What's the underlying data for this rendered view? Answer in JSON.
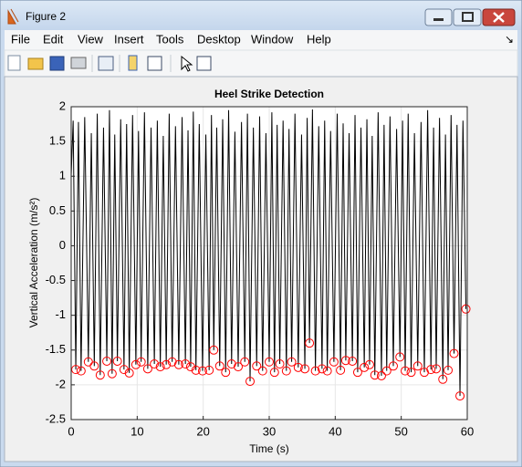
{
  "window": {
    "title": "Figure 2",
    "menu": [
      "File",
      "Edit",
      "View",
      "Insert",
      "Tools",
      "Desktop",
      "Window",
      "Help"
    ]
  },
  "chart_data": {
    "type": "line",
    "title": "Heel Strike Detection",
    "xlabel": "Time (s)",
    "ylabel": "Vertical Acceleration (m/s²)",
    "xlim": [
      0,
      60
    ],
    "xticks": [
      0,
      10,
      20,
      30,
      40,
      50,
      60
    ],
    "ylim": [
      -2.5,
      2
    ],
    "yticks": [
      -2.5,
      -2,
      -1.5,
      -1,
      -0.5,
      0,
      0.5,
      1,
      1.5,
      2
    ],
    "grid": true,
    "series": [
      {
        "color": "#000000",
        "x": [
          0,
          0.3,
          0.7,
          1.1,
          1.5,
          2.05,
          2.6,
          3.05,
          3.5,
          3.95,
          4.4,
          4.9,
          5.4,
          5.8,
          6.2,
          6.6,
          7.0,
          7.5,
          8.0,
          8.4,
          8.8,
          9.3,
          9.8,
          10.2,
          10.6,
          11.1,
          11.6,
          12.1,
          12.6,
          13.05,
          13.5,
          13.95,
          14.4,
          14.85,
          15.3,
          15.8,
          16.3,
          16.8,
          17.3,
          17.7,
          18.1,
          18.5,
          18.9,
          19.4,
          19.9,
          20.4,
          20.9,
          21.25,
          21.6,
          22.05,
          22.5,
          22.95,
          23.4,
          23.85,
          24.3,
          24.8,
          25.3,
          25.8,
          26.3,
          26.7,
          27.1,
          27.6,
          28.1,
          28.55,
          29.0,
          29.5,
          30.0,
          30.4,
          30.8,
          31.2,
          31.6,
          32.1,
          32.6,
          33.0,
          33.4,
          33.9,
          34.4,
          34.9,
          35.4,
          35.75,
          36.1,
          36.55,
          37.0,
          37.5,
          38.0,
          38.4,
          38.8,
          39.3,
          39.8,
          40.3,
          40.8,
          41.2,
          41.6,
          42.1,
          42.6,
          43.0,
          43.4,
          43.9,
          44.4,
          44.8,
          45.2,
          45.6,
          46.0,
          46.5,
          47.0,
          47.4,
          47.8,
          48.3,
          48.8,
          49.3,
          49.8,
          50.2,
          50.6,
          51.05,
          51.5,
          52.0,
          52.5,
          53.0,
          53.5,
          54.0,
          54.5,
          54.9,
          55.3,
          55.8,
          56.3,
          56.7,
          57.1,
          57.55,
          58.0,
          58.45,
          58.9,
          59.35,
          59.8
        ],
        "values": [
          1.0,
          1.8,
          -1.78,
          1.78,
          -1.8,
          1.85,
          -1.67,
          1.62,
          -1.73,
          1.9,
          -1.86,
          1.7,
          -1.66,
          1.95,
          -1.84,
          1.6,
          -1.66,
          1.82,
          -1.78,
          1.75,
          -1.83,
          1.88,
          -1.71,
          1.65,
          -1.67,
          1.92,
          -1.77,
          1.7,
          -1.7,
          1.8,
          -1.74,
          1.58,
          -1.71,
          1.9,
          -1.67,
          1.72,
          -1.71,
          1.85,
          -1.7,
          1.66,
          -1.74,
          1.93,
          -1.79,
          1.75,
          -1.8,
          1.6,
          -1.79,
          1.88,
          -1.5,
          1.7,
          -1.73,
          1.82,
          -1.82,
          1.95,
          -1.7,
          1.64,
          -1.74,
          1.78,
          -1.67,
          1.9,
          -1.95,
          1.7,
          -1.73,
          1.86,
          -1.8,
          1.62,
          -1.67,
          1.92,
          -1.82,
          1.74,
          -1.7,
          1.8,
          -1.8,
          1.68,
          -1.67,
          1.9,
          -1.75,
          1.6,
          -1.77,
          1.84,
          -1.4,
          1.96,
          -1.8,
          1.72,
          -1.77,
          1.8,
          -1.8,
          1.65,
          -1.67,
          1.9,
          -1.79,
          1.76,
          -1.65,
          1.62,
          -1.66,
          1.88,
          -1.82,
          1.7,
          -1.75,
          1.82,
          -1.71,
          1.58,
          -1.86,
          1.92,
          -1.87,
          1.74,
          -1.8,
          1.86,
          -1.73,
          1.68,
          -1.6,
          1.8,
          -1.8,
          1.9,
          -1.82,
          1.62,
          -1.73,
          1.78,
          -1.82,
          1.95,
          -1.78,
          1.7,
          -1.77,
          1.84,
          -1.92,
          1.6,
          -1.79,
          1.88,
          -1.55,
          1.74,
          -2.16,
          1.8,
          -0.91
        ]
      },
      {
        "color": "#ff0000",
        "marker": "o",
        "x": [
          0.7,
          1.5,
          2.6,
          3.5,
          4.4,
          5.4,
          6.2,
          7.0,
          8.0,
          8.8,
          9.8,
          10.6,
          11.6,
          12.6,
          13.5,
          14.4,
          15.3,
          16.3,
          17.3,
          18.1,
          18.9,
          19.9,
          20.9,
          21.6,
          22.5,
          23.4,
          24.3,
          25.3,
          26.3,
          27.1,
          28.1,
          29.0,
          30.0,
          30.8,
          31.6,
          32.6,
          33.4,
          34.4,
          35.4,
          36.1,
          37.0,
          38.0,
          38.8,
          39.8,
          40.8,
          41.6,
          42.6,
          43.4,
          44.4,
          45.2,
          46.0,
          47.0,
          47.8,
          48.8,
          49.8,
          50.6,
          51.5,
          52.5,
          53.5,
          54.5,
          55.3,
          56.3,
          57.1,
          58.0,
          58.9,
          59.8
        ],
        "values": [
          -1.78,
          -1.8,
          -1.67,
          -1.73,
          -1.86,
          -1.66,
          -1.84,
          -1.66,
          -1.78,
          -1.83,
          -1.71,
          -1.67,
          -1.77,
          -1.7,
          -1.74,
          -1.71,
          -1.67,
          -1.71,
          -1.7,
          -1.74,
          -1.79,
          -1.8,
          -1.79,
          -1.5,
          -1.73,
          -1.82,
          -1.7,
          -1.74,
          -1.67,
          -1.95,
          -1.73,
          -1.8,
          -1.67,
          -1.82,
          -1.7,
          -1.8,
          -1.67,
          -1.75,
          -1.77,
          -1.4,
          -1.8,
          -1.77,
          -1.8,
          -1.67,
          -1.79,
          -1.65,
          -1.66,
          -1.82,
          -1.75,
          -1.71,
          -1.86,
          -1.87,
          -1.8,
          -1.73,
          -1.6,
          -1.8,
          -1.82,
          -1.73,
          -1.82,
          -1.78,
          -1.77,
          -1.92,
          -1.79,
          -1.55,
          -2.16,
          -0.91
        ]
      }
    ]
  }
}
